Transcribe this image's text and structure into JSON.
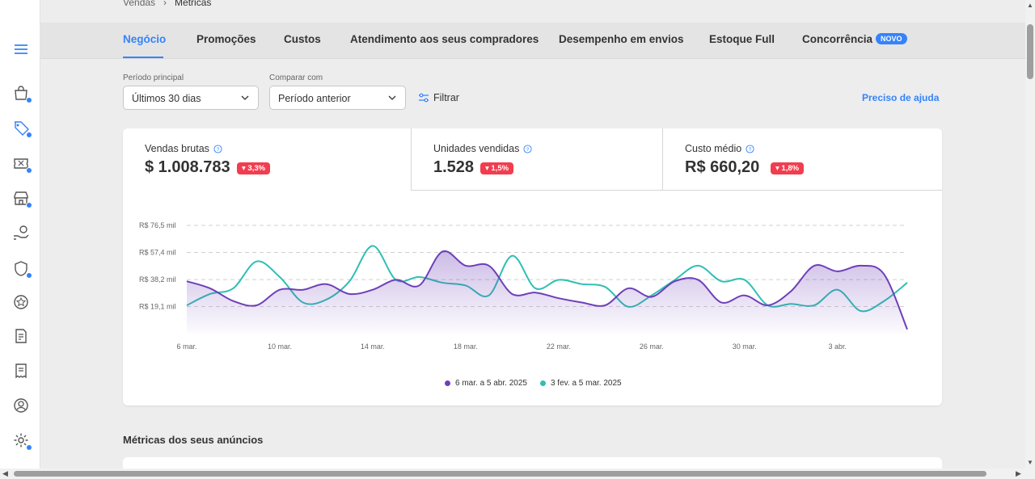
{
  "breadcrumb": {
    "parent": "Vendas",
    "separator": "›",
    "current": "Métricas"
  },
  "tabs": [
    {
      "label": "Negócio",
      "active": true
    },
    {
      "label": "Promoções"
    },
    {
      "label": "Custos"
    },
    {
      "label": "Atendimento aos seus compradores"
    },
    {
      "label": "Desempenho em envios"
    },
    {
      "label": "Estoque Full"
    },
    {
      "label": "Concorrência",
      "badge": "NOVO"
    }
  ],
  "filters": {
    "main_period_label": "Período principal",
    "main_period_value": "Últimos 30 dias",
    "compare_label": "Comparar com",
    "compare_value": "Período anterior",
    "filter_button": "Filtrar",
    "help_link": "Preciso de ajuda"
  },
  "kpis": [
    {
      "title": "Vendas brutas",
      "value": "$ 1.008.783",
      "delta": "▾ 3,3%"
    },
    {
      "title": "Unidades vendidas",
      "value": "1.528",
      "delta": "▾ 1,5%"
    },
    {
      "title": "Custo médio",
      "value": "R$ 660,20",
      "delta": "▾ 1,8%"
    }
  ],
  "colors": {
    "primary": "#3483fa",
    "series_current": "#6e3fb8",
    "series_previous": "#2fbfb3",
    "negative": "#f23d4f"
  },
  "chart_data": {
    "type": "line",
    "y_ticks": [
      "R$ 19,1 mil",
      "R$ 38,2 mil",
      "R$ 57,4 mil",
      "R$ 76,5 mil"
    ],
    "y_tick_values": [
      19.1,
      38.2,
      57.4,
      76.5
    ],
    "x_ticks": [
      "6 mar.",
      "10 mar.",
      "14 mar.",
      "18 mar.",
      "22 mar.",
      "26 mar.",
      "30 mar.",
      "3 abr."
    ],
    "ylim": [
      0,
      76.5
    ],
    "grid": "horizontal dashed",
    "legend_position": "bottom",
    "series": [
      {
        "name": "6 mar. a 5 abr. 2025",
        "color": "#6e3fb8",
        "fill": true,
        "values": [
          37,
          32,
          23,
          20,
          31,
          31,
          35,
          28,
          31,
          38,
          34,
          58,
          48,
          48,
          28,
          29,
          25,
          22,
          20,
          32,
          26,
          37,
          38,
          22,
          27,
          20,
          30,
          48,
          44,
          48,
          42,
          3
        ]
      },
      {
        "name": "3 fev. a 5 mar. 2025",
        "color": "#2fbfb3",
        "fill": false,
        "values": [
          20,
          28,
          32,
          51,
          40,
          22,
          24,
          37,
          62,
          38,
          40,
          36,
          34,
          27,
          55,
          32,
          38,
          35,
          33,
          19,
          27,
          38,
          48,
          37,
          38,
          20,
          21,
          20,
          31,
          16,
          23,
          36
        ]
      }
    ]
  },
  "section": {
    "title": "Métricas dos seus anúncios"
  },
  "sidebar": {
    "icons": [
      "menu-icon",
      "bag-icon",
      "tag-icon",
      "ticket-icon",
      "store-icon",
      "money-hand-icon",
      "shield-icon",
      "star-badge-icon",
      "document-edit-icon",
      "receipt-icon",
      "user-icon",
      "gear-icon"
    ]
  }
}
